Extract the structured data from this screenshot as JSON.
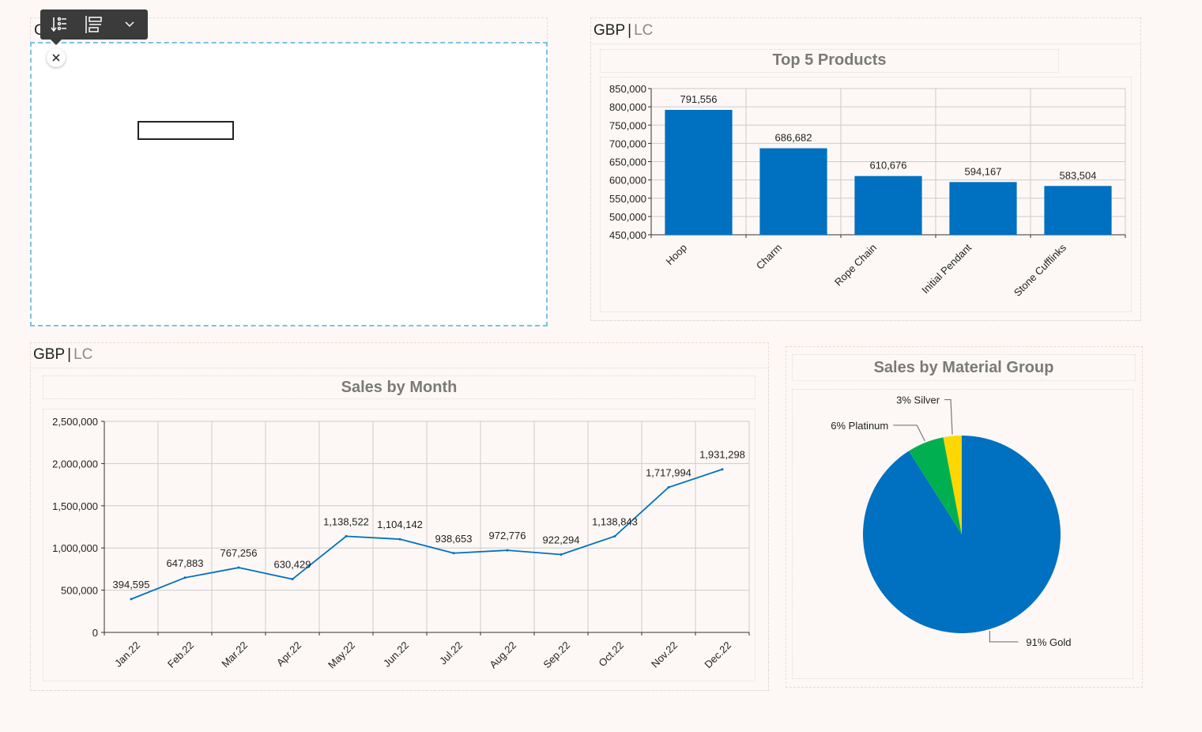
{
  "top_left_panel": {
    "title_fragment": "C",
    "toolbar": {
      "buttons": [
        {
          "name": "sort-filter-icon"
        },
        {
          "name": "align-icon"
        },
        {
          "name": "chevron-down-icon"
        }
      ]
    },
    "close_icon": "close-icon"
  },
  "top5_panel": {
    "currency": {
      "primary": "GBP",
      "separator": "|",
      "secondary": "LC"
    },
    "title": "Top 5 Products"
  },
  "monthly_panel": {
    "currency": {
      "primary": "GBP",
      "separator": "|",
      "secondary": "LC"
    },
    "title": "Sales by Month"
  },
  "material_panel": {
    "title": "Sales by Material Group"
  },
  "colors": {
    "bar": "#0070c0",
    "line": "#0070c0",
    "gold": "#0070c0",
    "platinum": "#00b050",
    "silver": "#ffd700",
    "grid": "#cccccc"
  },
  "chart_data": [
    {
      "type": "bar",
      "title": "Top 5 Products",
      "categories": [
        "Hoop",
        "Charm",
        "Rope Chain",
        "Initial Pendant",
        "Stone Cufflinks"
      ],
      "values": [
        791556,
        686682,
        610676,
        594167,
        583504
      ],
      "value_labels": [
        "791,556",
        "686,682",
        "610,676",
        "594,167",
        "583,504"
      ],
      "ylim": [
        450000,
        850000
      ],
      "yticks": [
        450000,
        500000,
        550000,
        600000,
        650000,
        700000,
        750000,
        800000,
        850000
      ],
      "ytick_labels": [
        "450,000",
        "500,000",
        "550,000",
        "600,000",
        "650,000",
        "700,000",
        "750,000",
        "800,000",
        "850,000"
      ],
      "grid": true
    },
    {
      "type": "line",
      "title": "Sales by Month",
      "categories": [
        "Jan.22",
        "Feb.22",
        "Mar.22",
        "Apr.22",
        "May.22",
        "Jun.22",
        "Jul.22",
        "Aug.22",
        "Sep.22",
        "Oct.22",
        "Nov.22",
        "Dec.22"
      ],
      "values": [
        394595,
        647883,
        767256,
        630429,
        1138522,
        1104142,
        938653,
        972776,
        922294,
        1138843,
        1717994,
        1931298
      ],
      "value_labels": [
        "394,595",
        "647,883",
        "767,256",
        "630,429",
        "1,138,522",
        "1,104,142",
        "938,653",
        "972,776",
        "922,294",
        "1,138,843",
        "1,717,994",
        "1,931,298"
      ],
      "ylim": [
        0,
        2500000
      ],
      "yticks": [
        0,
        500000,
        1000000,
        1500000,
        2000000,
        2500000
      ],
      "ytick_labels": [
        "0",
        "500,000",
        "1,000,000",
        "1,500,000",
        "2,000,000",
        "2,500,000"
      ],
      "grid": true
    },
    {
      "type": "pie",
      "title": "Sales by Material Group",
      "slices": [
        {
          "label": "91% Gold",
          "value": 91,
          "color": "#0070c0"
        },
        {
          "label": "6% Platinum",
          "value": 6,
          "color": "#00b050"
        },
        {
          "label": "3% Silver",
          "value": 3,
          "color": "#ffd700"
        }
      ]
    }
  ]
}
